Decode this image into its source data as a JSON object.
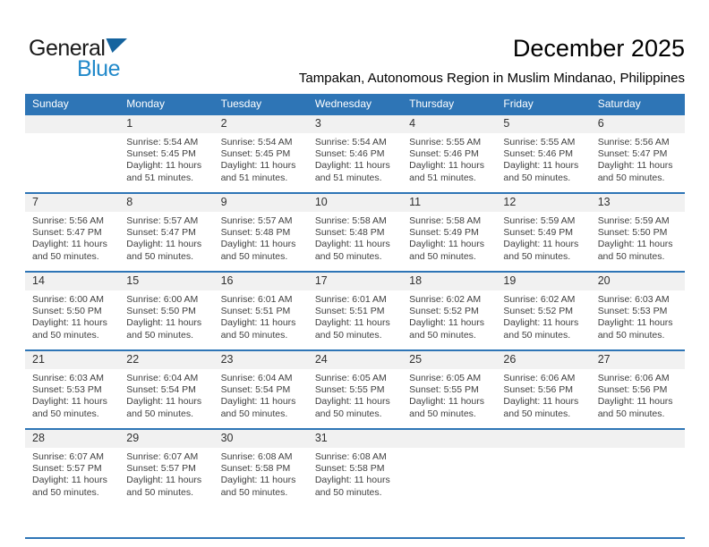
{
  "logo": {
    "general": "General",
    "blue": "Blue"
  },
  "header": {
    "title": "December 2025",
    "subtitle": "Tampakan, Autonomous Region in Muslim Mindanao, Philippines"
  },
  "colors": {
    "header_bg": "#2E75B6",
    "divider": "#2E75B6",
    "strip_bg": "#F1F1F1",
    "logo_blue": "#2189CA",
    "logo_flag": "#15639E"
  },
  "calendar": {
    "day_headers": [
      "Sunday",
      "Monday",
      "Tuesday",
      "Wednesday",
      "Thursday",
      "Friday",
      "Saturday"
    ],
    "weeks": [
      [
        null,
        {
          "day": "1",
          "sunrise": "Sunrise: 5:54 AM",
          "sunset": "Sunset: 5:45 PM",
          "daylight": "Daylight: 11 hours and 51 minutes."
        },
        {
          "day": "2",
          "sunrise": "Sunrise: 5:54 AM",
          "sunset": "Sunset: 5:45 PM",
          "daylight": "Daylight: 11 hours and 51 minutes."
        },
        {
          "day": "3",
          "sunrise": "Sunrise: 5:54 AM",
          "sunset": "Sunset: 5:46 PM",
          "daylight": "Daylight: 11 hours and 51 minutes."
        },
        {
          "day": "4",
          "sunrise": "Sunrise: 5:55 AM",
          "sunset": "Sunset: 5:46 PM",
          "daylight": "Daylight: 11 hours and 51 minutes."
        },
        {
          "day": "5",
          "sunrise": "Sunrise: 5:55 AM",
          "sunset": "Sunset: 5:46 PM",
          "daylight": "Daylight: 11 hours and 50 minutes."
        },
        {
          "day": "6",
          "sunrise": "Sunrise: 5:56 AM",
          "sunset": "Sunset: 5:47 PM",
          "daylight": "Daylight: 11 hours and 50 minutes."
        }
      ],
      [
        {
          "day": "7",
          "sunrise": "Sunrise: 5:56 AM",
          "sunset": "Sunset: 5:47 PM",
          "daylight": "Daylight: 11 hours and 50 minutes."
        },
        {
          "day": "8",
          "sunrise": "Sunrise: 5:57 AM",
          "sunset": "Sunset: 5:47 PM",
          "daylight": "Daylight: 11 hours and 50 minutes."
        },
        {
          "day": "9",
          "sunrise": "Sunrise: 5:57 AM",
          "sunset": "Sunset: 5:48 PM",
          "daylight": "Daylight: 11 hours and 50 minutes."
        },
        {
          "day": "10",
          "sunrise": "Sunrise: 5:58 AM",
          "sunset": "Sunset: 5:48 PM",
          "daylight": "Daylight: 11 hours and 50 minutes."
        },
        {
          "day": "11",
          "sunrise": "Sunrise: 5:58 AM",
          "sunset": "Sunset: 5:49 PM",
          "daylight": "Daylight: 11 hours and 50 minutes."
        },
        {
          "day": "12",
          "sunrise": "Sunrise: 5:59 AM",
          "sunset": "Sunset: 5:49 PM",
          "daylight": "Daylight: 11 hours and 50 minutes."
        },
        {
          "day": "13",
          "sunrise": "Sunrise: 5:59 AM",
          "sunset": "Sunset: 5:50 PM",
          "daylight": "Daylight: 11 hours and 50 minutes."
        }
      ],
      [
        {
          "day": "14",
          "sunrise": "Sunrise: 6:00 AM",
          "sunset": "Sunset: 5:50 PM",
          "daylight": "Daylight: 11 hours and 50 minutes."
        },
        {
          "day": "15",
          "sunrise": "Sunrise: 6:00 AM",
          "sunset": "Sunset: 5:50 PM",
          "daylight": "Daylight: 11 hours and 50 minutes."
        },
        {
          "day": "16",
          "sunrise": "Sunrise: 6:01 AM",
          "sunset": "Sunset: 5:51 PM",
          "daylight": "Daylight: 11 hours and 50 minutes."
        },
        {
          "day": "17",
          "sunrise": "Sunrise: 6:01 AM",
          "sunset": "Sunset: 5:51 PM",
          "daylight": "Daylight: 11 hours and 50 minutes."
        },
        {
          "day": "18",
          "sunrise": "Sunrise: 6:02 AM",
          "sunset": "Sunset: 5:52 PM",
          "daylight": "Daylight: 11 hours and 50 minutes."
        },
        {
          "day": "19",
          "sunrise": "Sunrise: 6:02 AM",
          "sunset": "Sunset: 5:52 PM",
          "daylight": "Daylight: 11 hours and 50 minutes."
        },
        {
          "day": "20",
          "sunrise": "Sunrise: 6:03 AM",
          "sunset": "Sunset: 5:53 PM",
          "daylight": "Daylight: 11 hours and 50 minutes."
        }
      ],
      [
        {
          "day": "21",
          "sunrise": "Sunrise: 6:03 AM",
          "sunset": "Sunset: 5:53 PM",
          "daylight": "Daylight: 11 hours and 50 minutes."
        },
        {
          "day": "22",
          "sunrise": "Sunrise: 6:04 AM",
          "sunset": "Sunset: 5:54 PM",
          "daylight": "Daylight: 11 hours and 50 minutes."
        },
        {
          "day": "23",
          "sunrise": "Sunrise: 6:04 AM",
          "sunset": "Sunset: 5:54 PM",
          "daylight": "Daylight: 11 hours and 50 minutes."
        },
        {
          "day": "24",
          "sunrise": "Sunrise: 6:05 AM",
          "sunset": "Sunset: 5:55 PM",
          "daylight": "Daylight: 11 hours and 50 minutes."
        },
        {
          "day": "25",
          "sunrise": "Sunrise: 6:05 AM",
          "sunset": "Sunset: 5:55 PM",
          "daylight": "Daylight: 11 hours and 50 minutes."
        },
        {
          "day": "26",
          "sunrise": "Sunrise: 6:06 AM",
          "sunset": "Sunset: 5:56 PM",
          "daylight": "Daylight: 11 hours and 50 minutes."
        },
        {
          "day": "27",
          "sunrise": "Sunrise: 6:06 AM",
          "sunset": "Sunset: 5:56 PM",
          "daylight": "Daylight: 11 hours and 50 minutes."
        }
      ],
      [
        {
          "day": "28",
          "sunrise": "Sunrise: 6:07 AM",
          "sunset": "Sunset: 5:57 PM",
          "daylight": "Daylight: 11 hours and 50 minutes."
        },
        {
          "day": "29",
          "sunrise": "Sunrise: 6:07 AM",
          "sunset": "Sunset: 5:57 PM",
          "daylight": "Daylight: 11 hours and 50 minutes."
        },
        {
          "day": "30",
          "sunrise": "Sunrise: 6:08 AM",
          "sunset": "Sunset: 5:58 PM",
          "daylight": "Daylight: 11 hours and 50 minutes."
        },
        {
          "day": "31",
          "sunrise": "Sunrise: 6:08 AM",
          "sunset": "Sunset: 5:58 PM",
          "daylight": "Daylight: 11 hours and 50 minutes."
        },
        null,
        null,
        null
      ]
    ]
  }
}
